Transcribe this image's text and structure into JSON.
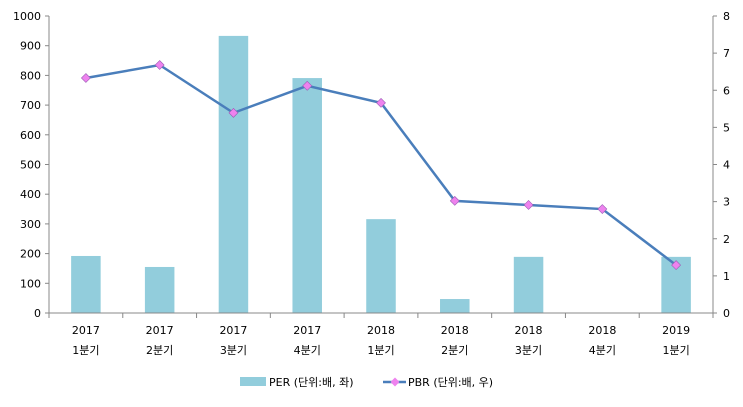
{
  "chart_data": {
    "type": "bar+line",
    "categories": [
      [
        "2017",
        "1분기"
      ],
      [
        "2017",
        "2분기"
      ],
      [
        "2017",
        "3분기"
      ],
      [
        "2017",
        "4분기"
      ],
      [
        "2018",
        "1분기"
      ],
      [
        "2018",
        "2분기"
      ],
      [
        "2018",
        "3분기"
      ],
      [
        "2018",
        "4분기"
      ],
      [
        "2019",
        "1분기"
      ]
    ],
    "series": [
      {
        "name": "PER (단위:배, 좌)",
        "type": "bar",
        "axis": "left",
        "color": "#92CDDC",
        "values": [
          192,
          155,
          933,
          791,
          316,
          47,
          189,
          null,
          189
        ]
      },
      {
        "name": "PBR (단위:배, 우)",
        "type": "line",
        "axis": "right",
        "color": "#4A7EBB",
        "marker_color": "#EE82EE",
        "values": [
          6.33,
          6.68,
          5.39,
          6.12,
          5.66,
          3.02,
          2.91,
          2.8,
          1.29
        ]
      }
    ],
    "ylim_left": [
      0,
      1000
    ],
    "yticks_left": [
      0,
      100,
      200,
      300,
      400,
      500,
      600,
      700,
      800,
      900,
      1000
    ],
    "ylim_right": [
      0,
      8
    ],
    "yticks_right": [
      0,
      1,
      2,
      3,
      4,
      5,
      6,
      7,
      8
    ],
    "legend": "bottom",
    "grid": false
  }
}
